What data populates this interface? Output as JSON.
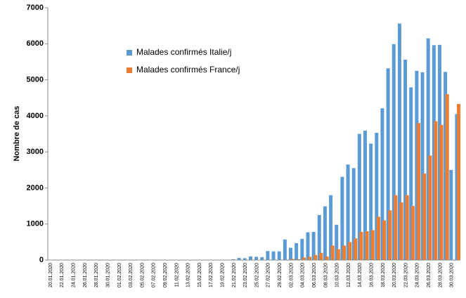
{
  "chart_data": {
    "type": "bar",
    "ylabel": "Nombre de cas",
    "categories": [
      "20.01.2020",
      null,
      "22.01.2020",
      null,
      "24.01.2020",
      null,
      "26.01.2020",
      null,
      "28.01.2020",
      null,
      "30.01.2020",
      null,
      "01.02.2020",
      null,
      "03.02.2020",
      null,
      "05.02.2020",
      null,
      "07.02.2020",
      null,
      "09.02.2020",
      null,
      "11.02.2020",
      null,
      "13.02.2020",
      null,
      "15.02.2020",
      null,
      "17.02.2020",
      null,
      "19.02.2020",
      null,
      "21.02.2020",
      null,
      "23.02.2020",
      null,
      "25.02.2020",
      null,
      "27.02.2020",
      null,
      "29.02.2020",
      null,
      "02.03.2020",
      null,
      "04.03.2020",
      null,
      "06.03.2020",
      null,
      "08.03.2020",
      null,
      "10.03.2020",
      null,
      "12.03.2020",
      null,
      "14.03.2020",
      null,
      "16.03.2020",
      null,
      "18.03.2020",
      null,
      "20.03.2020",
      null,
      "22.03.2020",
      null,
      "24.03.2020",
      null,
      "26.03.2020",
      null,
      "28.03.2020",
      null,
      "30.03.2020",
      null
    ],
    "series": [
      {
        "name": "Malades confirmés Italie/j",
        "color": "#5b9bd5",
        "values": [
          0,
          0,
          0,
          0,
          0,
          0,
          0,
          0,
          0,
          0,
          0,
          0,
          0,
          0,
          0,
          0,
          0,
          0,
          0,
          0,
          0,
          0,
          0,
          0,
          0,
          0,
          0,
          0,
          0,
          0,
          0,
          0,
          20,
          60,
          50,
          100,
          90,
          80,
          250,
          240,
          240,
          570,
          340,
          470,
          590,
          770,
          780,
          1250,
          1490,
          1800,
          980,
          2310,
          2650,
          2550,
          3500,
          3590,
          3230,
          3530,
          4210,
          5320,
          5990,
          6560,
          5560,
          4790,
          5250,
          5210,
          6150,
          5960,
          5970,
          5220,
          2500,
          4050
        ]
      },
      {
        "name": "Malades confirmés France/j",
        "color": "#ed7d31",
        "values": [
          0,
          0,
          0,
          0,
          0,
          0,
          0,
          0,
          0,
          0,
          0,
          0,
          0,
          0,
          0,
          0,
          0,
          0,
          0,
          0,
          0,
          0,
          0,
          0,
          0,
          0,
          0,
          0,
          0,
          0,
          0,
          0,
          0,
          0,
          0,
          0,
          0,
          0,
          0,
          0,
          0,
          0,
          30,
          20,
          70,
          90,
          140,
          200,
          100,
          400,
          300,
          400,
          500,
          600,
          780,
          800,
          830,
          1200,
          1100,
          1380,
          1800,
          1600,
          1800,
          1500,
          3800,
          2400,
          2900,
          3850,
          3750,
          4600,
          0,
          4330
        ]
      }
    ],
    "ylim": [
      0,
      7000
    ],
    "yticks": [
      0,
      1000,
      2000,
      3000,
      4000,
      5000,
      6000,
      7000
    ],
    "grid": false,
    "legend": "upper left"
  }
}
